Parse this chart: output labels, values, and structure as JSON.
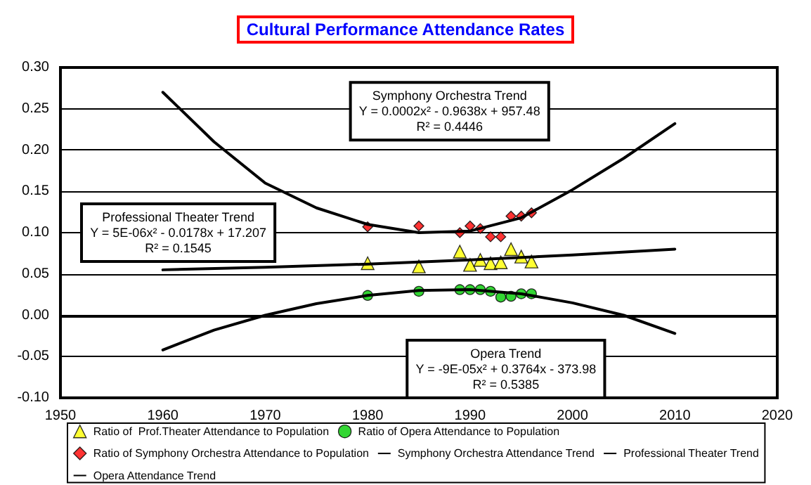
{
  "chart_data": {
    "type": "scatter",
    "title": "Cultural Performance Attendance Rates",
    "xlim": [
      1950,
      2020
    ],
    "xticks": [
      1950,
      1960,
      1970,
      1980,
      1990,
      2000,
      2010,
      2020
    ],
    "ylim": [
      -0.1,
      0.3
    ],
    "yticks": [
      {
        "value": -0.1,
        "label": "-0.10"
      },
      {
        "value": -0.05,
        "label": "-0.05"
      },
      {
        "value": 0,
        "label": "0.00"
      },
      {
        "value": 0.05,
        "label": "0.05"
      },
      {
        "value": 0.1,
        "label": "0.10"
      },
      {
        "value": 0.15,
        "label": "0.15"
      },
      {
        "value": 0.2,
        "label": "0.20"
      },
      {
        "value": 0.25,
        "label": "0.25"
      },
      {
        "value": 0.3,
        "label": "0.30"
      }
    ],
    "grid": "y",
    "legend": "bottom",
    "series": [
      {
        "type": "scatter",
        "name": "Ratio of  Prof.Theater Attendance to Population",
        "color": "#ffff00",
        "marker": "triangle",
        "x": [
          1980,
          1985,
          1989,
          1990,
          1991,
          1992,
          1993,
          1994,
          1995,
          1996
        ],
        "values": [
          0.063,
          0.059,
          0.077,
          0.061,
          0.067,
          0.063,
          0.064,
          0.08,
          0.071,
          0.065
        ]
      },
      {
        "type": "scatter",
        "name": "Ratio of Opera Attendance to Population",
        "color": "#00cc00",
        "marker": "circle",
        "x": [
          1980,
          1985,
          1989,
          1990,
          1991,
          1992,
          1993,
          1994,
          1995,
          1996
        ],
        "values": [
          0.024,
          0.029,
          0.031,
          0.031,
          0.031,
          0.029,
          0.022,
          0.023,
          0.026,
          0.026
        ]
      },
      {
        "type": "scatter",
        "name": "Ratio of Symphony Orchestra Attendance to Population",
        "color": "#ff0000",
        "marker": "diamond",
        "x": [
          1980,
          1985,
          1989,
          1990,
          1991,
          1992,
          1993,
          1994,
          1995,
          1996
        ],
        "values": [
          0.107,
          0.108,
          0.1,
          0.108,
          0.105,
          0.095,
          0.095,
          0.12,
          0.12,
          0.124
        ]
      },
      {
        "type": "line",
        "name": "Symphony Orchestra Attendance Trend",
        "color": "#000000",
        "marker": "none",
        "x": [
          1960,
          1965,
          1970,
          1975,
          1980,
          1985,
          1990,
          1995,
          2000,
          2005,
          2010
        ],
        "values": [
          0.27,
          0.21,
          0.16,
          0.13,
          0.11,
          0.1,
          0.102,
          0.118,
          0.152,
          0.19,
          0.232
        ]
      },
      {
        "type": "line",
        "name": "Professional Theater Trend",
        "color": "#000000",
        "marker": "none",
        "x": [
          1960,
          1970,
          1980,
          1990,
          2000,
          2010
        ],
        "values": [
          0.055,
          0.058,
          0.062,
          0.067,
          0.073,
          0.08
        ]
      },
      {
        "type": "line",
        "name": "Opera Attendance Trend",
        "color": "#000000",
        "marker": "none",
        "x": [
          1960,
          1965,
          1970,
          1975,
          1980,
          1985,
          1990,
          1995,
          2000,
          2005,
          2010
        ],
        "values": [
          -0.042,
          -0.018,
          0,
          0.014,
          0.024,
          0.03,
          0.031,
          0.026,
          0.015,
          0,
          -0.022
        ]
      }
    ],
    "annotations": [
      "Symphony Orchestra Trend\nY = 0.0002x² - 0.9638x + 957.48\nR² = 0.4446",
      "Professional Theater Trend\nY = 5E-06x² - 0.0178x + 17.207\nR² = 0.1545",
      "Opera Trend\nY = -9E-05x² + 0.3764x - 373.98\nR² = 0.5385"
    ]
  }
}
